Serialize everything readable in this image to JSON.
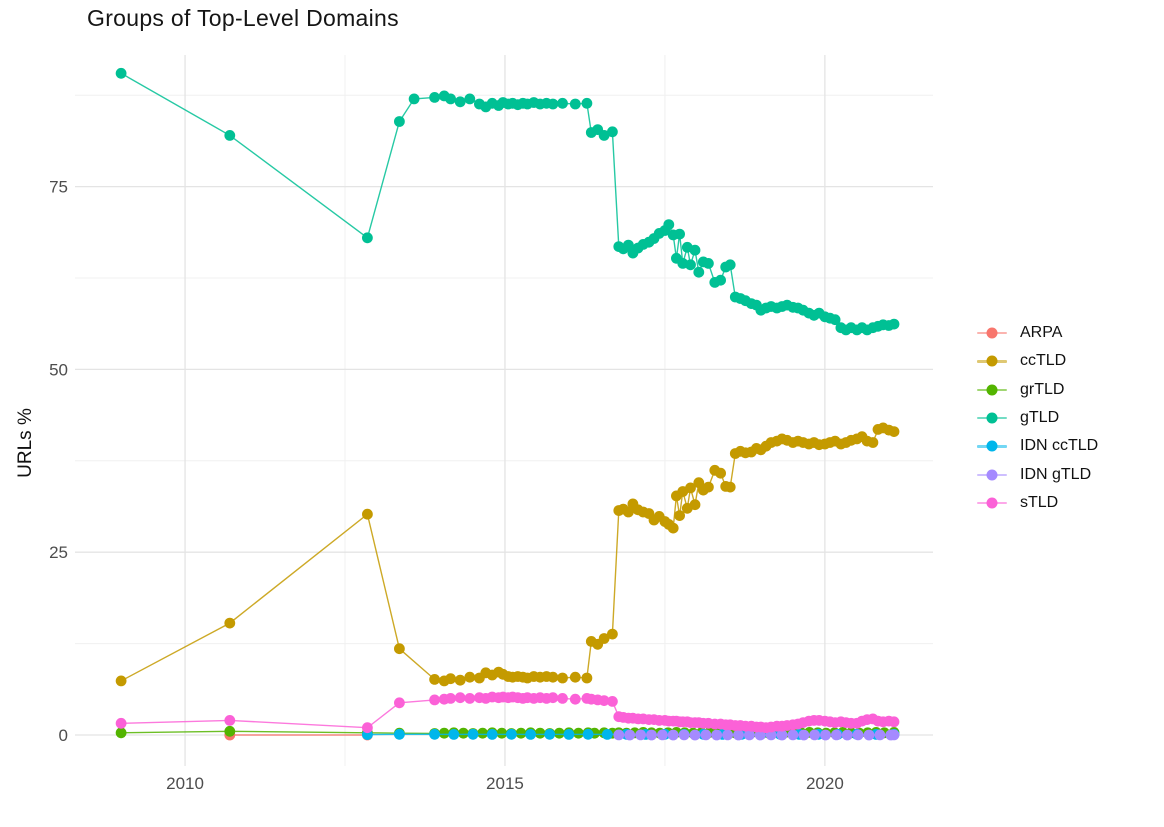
{
  "title": "Groups of Top-Level Domains",
  "y_axis": {
    "title": "URLs %",
    "ticks": [
      "0",
      "25",
      "50",
      "75"
    ]
  },
  "x_axis": {
    "ticks": [
      "2010",
      "2015",
      "2020"
    ]
  },
  "legend": {
    "items": [
      {
        "label": "ARPA",
        "color": "#F8766D"
      },
      {
        "label": "ccTLD",
        "color": "#C49A00"
      },
      {
        "label": "grTLD",
        "color": "#53B400"
      },
      {
        "label": "gTLD",
        "color": "#00C094"
      },
      {
        "label": "IDN ccTLD",
        "color": "#00B6EB"
      },
      {
        "label": "IDN gTLD",
        "color": "#A58AFF"
      },
      {
        "label": "sTLD",
        "color": "#FB61D7"
      }
    ]
  },
  "colors": {
    "tick_label": "#4d4d4d",
    "grid_major": "#e4e4e4",
    "grid_minor": "#f0f0f0"
  },
  "chart_data": {
    "type": "line",
    "title": "Groups of Top-Level Domains",
    "xlabel": "",
    "ylabel": "URLs %",
    "xlim": [
      2008.28,
      2021.69
    ],
    "ylim": [
      -4.24,
      93.0
    ],
    "x_ticks": [
      2010,
      2015,
      2020
    ],
    "y_ticks": [
      0,
      25,
      50,
      75
    ],
    "grid": {
      "major_x": [
        2010,
        2015,
        2020
      ],
      "minor_x": [
        2012.5,
        2017.5
      ],
      "major_y": [
        0,
        25,
        50,
        75
      ],
      "minor_y": [
        12.5,
        37.5,
        62.5,
        87.5
      ]
    },
    "legend_position": "right",
    "series": [
      {
        "name": "ARPA",
        "color": "#F8766D",
        "x": [
          2010.7,
          2012.85
        ],
        "y": [
          0,
          0
        ]
      },
      {
        "name": "ccTLD",
        "color": "#C49A00",
        "x": [
          2009,
          2010.7,
          2012.85,
          2013.35,
          2013.9,
          2014.05,
          2014.15,
          2014.3,
          2014.45,
          2014.6,
          2014.7,
          2014.8,
          2014.9,
          2014.97,
          2015.05,
          2015.12,
          2015.2,
          2015.28,
          2015.35,
          2015.45,
          2015.55,
          2015.65,
          2015.75,
          2015.9,
          2016.1,
          2016.28,
          2016.35,
          2016.45,
          2016.55,
          2016.68,
          2016.78,
          2016.85,
          2016.93,
          2017.0,
          2017.08,
          2017.16,
          2017.25,
          2017.33,
          2017.41,
          2017.5,
          2017.56,
          2017.63,
          2017.68,
          2017.73,
          2017.78,
          2017.85,
          2017.9,
          2017.97,
          2018.03,
          2018.1,
          2018.18,
          2018.28,
          2018.37,
          2018.45,
          2018.52,
          2018.6,
          2018.68,
          2018.76,
          2018.85,
          2018.93,
          2019.0,
          2019.08,
          2019.16,
          2019.25,
          2019.33,
          2019.41,
          2019.5,
          2019.58,
          2019.66,
          2019.75,
          2019.83,
          2019.91,
          2020.0,
          2020.08,
          2020.16,
          2020.25,
          2020.33,
          2020.41,
          2020.5,
          2020.58,
          2020.66,
          2020.75,
          2020.83,
          2020.91,
          2021.0,
          2021.08
        ],
        "y": [
          7.4,
          15.3,
          30.2,
          11.8,
          7.6,
          7.4,
          7.7,
          7.5,
          7.9,
          7.8,
          8.5,
          8.2,
          8.6,
          8.3,
          8,
          7.9,
          8,
          7.9,
          7.8,
          8,
          7.9,
          8,
          7.9,
          7.8,
          7.9,
          7.8,
          12.8,
          12.4,
          13.2,
          13.8,
          30.7,
          30.9,
          30.5,
          31.6,
          30.8,
          30.5,
          30.3,
          29.4,
          29.9,
          29.2,
          28.8,
          28.3,
          32.7,
          30,
          33.3,
          31,
          33.8,
          31.5,
          34.5,
          33.5,
          33.9,
          36.2,
          35.8,
          34,
          33.9,
          38.5,
          38.8,
          38.6,
          38.7,
          39.2,
          39,
          39.5,
          40,
          40.2,
          40.5,
          40.3,
          40,
          40.2,
          40,
          39.8,
          40,
          39.7,
          39.8,
          40,
          40.2,
          39.8,
          40,
          40.3,
          40.5,
          40.8,
          40.2,
          40,
          41.8,
          42,
          41.7,
          41.5
        ]
      },
      {
        "name": "grTLD",
        "color": "#53B400",
        "x": [
          2009,
          2010.7,
          2012.85,
          2013.35,
          2013.9,
          2014.05,
          2014.2,
          2014.35,
          2014.5,
          2014.65,
          2014.8,
          2014.95,
          2015.1,
          2015.25,
          2015.4,
          2015.55,
          2015.7,
          2015.85,
          2016.0,
          2016.15,
          2016.3,
          2016.4,
          2016.55,
          2016.68,
          2016.78,
          2016.9,
          2017.03,
          2017.16,
          2017.29,
          2017.42,
          2017.55,
          2017.68,
          2017.81,
          2017.94,
          2018.07,
          2018.2,
          2018.33,
          2018.46,
          2018.59,
          2018.72,
          2018.85,
          2018.98,
          2019.11,
          2019.24,
          2019.37,
          2019.5,
          2019.63,
          2019.76,
          2019.89,
          2020.02,
          2020.15,
          2020.28,
          2020.41,
          2020.54,
          2020.67,
          2020.8,
          2020.93,
          2021.08
        ],
        "y": [
          0.3,
          0.5,
          0.3,
          0.25,
          0.2,
          0.25,
          0.3,
          0.25,
          0.2,
          0.25,
          0.3,
          0.25,
          0.2,
          0.25,
          0.3,
          0.25,
          0.2,
          0.25,
          0.3,
          0.25,
          0.3,
          0.25,
          0.3,
          0.25,
          0.3,
          0.25,
          0.3,
          0.35,
          0.3,
          0.25,
          0.3,
          0.35,
          0.3,
          0.25,
          0.3,
          0.35,
          0.3,
          0.25,
          0.3,
          0.35,
          0.3,
          0.25,
          0.3,
          0.35,
          0.3,
          0.25,
          0.3,
          0.35,
          0.3,
          0.25,
          0.3,
          0.35,
          0.3,
          0.25,
          0.3,
          0.35,
          0.3,
          0.35
        ]
      },
      {
        "name": "gTLD",
        "color": "#00C094",
        "x": [
          2009,
          2010.7,
          2012.85,
          2013.35,
          2013.58,
          2013.9,
          2014.05,
          2014.15,
          2014.3,
          2014.45,
          2014.6,
          2014.7,
          2014.8,
          2014.9,
          2014.97,
          2015.05,
          2015.12,
          2015.2,
          2015.28,
          2015.35,
          2015.45,
          2015.55,
          2015.65,
          2015.75,
          2015.9,
          2016.1,
          2016.28,
          2016.35,
          2016.45,
          2016.55,
          2016.68,
          2016.78,
          2016.85,
          2016.93,
          2017.0,
          2017.08,
          2017.16,
          2017.25,
          2017.33,
          2017.41,
          2017.5,
          2017.56,
          2017.63,
          2017.68,
          2017.73,
          2017.78,
          2017.85,
          2017.9,
          2017.97,
          2018.03,
          2018.1,
          2018.18,
          2018.28,
          2018.37,
          2018.45,
          2018.52,
          2018.6,
          2018.68,
          2018.76,
          2018.85,
          2018.93,
          2019.0,
          2019.08,
          2019.16,
          2019.25,
          2019.33,
          2019.41,
          2019.5,
          2019.58,
          2019.66,
          2019.75,
          2019.83,
          2019.91,
          2020.0,
          2020.08,
          2020.16,
          2020.25,
          2020.33,
          2020.41,
          2020.5,
          2020.58,
          2020.66,
          2020.75,
          2020.83,
          2020.91,
          2021.0,
          2021.08
        ],
        "y": [
          90.5,
          82,
          68,
          83.9,
          87,
          87.2,
          87.4,
          87,
          86.6,
          87,
          86.3,
          85.9,
          86.4,
          86.1,
          86.5,
          86.3,
          86.4,
          86.2,
          86.4,
          86.3,
          86.5,
          86.3,
          86.4,
          86.3,
          86.4,
          86.3,
          86.4,
          82.4,
          82.8,
          82,
          82.5,
          66.8,
          66.5,
          67,
          65.9,
          66.6,
          67.1,
          67.4,
          67.9,
          68.6,
          69,
          69.8,
          68.4,
          65.2,
          68.5,
          64.5,
          66.7,
          64.3,
          66.3,
          63.3,
          64.7,
          64.5,
          61.9,
          62.2,
          64,
          64.3,
          59.9,
          59.7,
          59.4,
          59,
          58.8,
          58.1,
          58.4,
          58.6,
          58.4,
          58.6,
          58.8,
          58.5,
          58.4,
          58.1,
          57.7,
          57.4,
          57.7,
          57.2,
          57,
          56.8,
          55.7,
          55.4,
          55.7,
          55.4,
          55.7,
          55.4,
          55.7,
          55.9,
          56.1,
          56,
          56.2
        ]
      },
      {
        "name": "IDN ccTLD",
        "color": "#00B6EB",
        "x": [
          2012.85,
          2013.35,
          2013.9,
          2014.2,
          2014.5,
          2014.8,
          2015.1,
          2015.4,
          2015.7,
          2016,
          2016.3,
          2016.6,
          2016.9,
          2017.2,
          2017.5,
          2017.8,
          2018.1,
          2018.4,
          2018.7,
          2019,
          2019.3,
          2019.6,
          2019.9,
          2020.2,
          2020.5,
          2020.8,
          2021.08
        ],
        "y": [
          0.05,
          0.1,
          0.1,
          0.08,
          0.1,
          0.08,
          0.1,
          0.08,
          0.1,
          0.08,
          0.1,
          0.08,
          0.1,
          0.08,
          0.1,
          0.08,
          0.1,
          0.08,
          0.1,
          0.08,
          0.1,
          0.08,
          0.1,
          0.08,
          0.1,
          0.08,
          0.1
        ]
      },
      {
        "name": "IDN gTLD",
        "color": "#A58AFF",
        "x": [
          2016.78,
          2016.95,
          2017.12,
          2017.29,
          2017.46,
          2017.63,
          2017.8,
          2017.97,
          2018.14,
          2018.31,
          2018.48,
          2018.65,
          2018.82,
          2018.99,
          2019.16,
          2019.33,
          2019.5,
          2019.67,
          2019.84,
          2020.01,
          2020.18,
          2020.35,
          2020.52,
          2020.69,
          2020.86,
          2021.03,
          2021.08
        ],
        "y": [
          0.02,
          0,
          0.02,
          0,
          0.02,
          0,
          0.02,
          0,
          0.02,
          0,
          0.02,
          0,
          0.02,
          0,
          0.02,
          0,
          0.02,
          0,
          0.02,
          0,
          0.02,
          0,
          0.02,
          0,
          0.02,
          0,
          0.02
        ]
      },
      {
        "name": "sTLD",
        "color": "#FB61D7",
        "x": [
          2009,
          2010.7,
          2012.85,
          2013.35,
          2013.9,
          2014.05,
          2014.15,
          2014.3,
          2014.45,
          2014.6,
          2014.7,
          2014.8,
          2014.9,
          2014.97,
          2015.05,
          2015.12,
          2015.2,
          2015.28,
          2015.35,
          2015.45,
          2015.55,
          2015.65,
          2015.75,
          2015.9,
          2016.1,
          2016.28,
          2016.35,
          2016.45,
          2016.55,
          2016.68,
          2016.78,
          2016.85,
          2016.93,
          2017.0,
          2017.08,
          2017.16,
          2017.25,
          2017.33,
          2017.41,
          2017.5,
          2017.56,
          2017.63,
          2017.68,
          2017.73,
          2017.78,
          2017.85,
          2017.9,
          2017.97,
          2018.03,
          2018.1,
          2018.18,
          2018.28,
          2018.37,
          2018.45,
          2018.52,
          2018.6,
          2018.68,
          2018.76,
          2018.85,
          2018.93,
          2019.0,
          2019.08,
          2019.16,
          2019.25,
          2019.33,
          2019.41,
          2019.5,
          2019.58,
          2019.66,
          2019.75,
          2019.83,
          2019.91,
          2020.0,
          2020.08,
          2020.16,
          2020.25,
          2020.33,
          2020.41,
          2020.5,
          2020.58,
          2020.66,
          2020.75,
          2020.83,
          2020.91,
          2021.0,
          2021.08
        ],
        "y": [
          1.6,
          2,
          1,
          4.4,
          4.8,
          4.9,
          5,
          5.1,
          5,
          5.1,
          5,
          5.2,
          5.1,
          5.2,
          5.1,
          5.2,
          5.1,
          5,
          5.1,
          5,
          5.1,
          5,
          5.1,
          5,
          4.9,
          5,
          4.9,
          4.8,
          4.7,
          4.6,
          2.5,
          2.4,
          2.3,
          2.3,
          2.2,
          2.2,
          2.1,
          2.1,
          2,
          2,
          1.9,
          1.9,
          1.9,
          1.8,
          1.8,
          1.8,
          1.7,
          1.7,
          1.7,
          1.6,
          1.6,
          1.5,
          1.5,
          1.4,
          1.4,
          1.3,
          1.3,
          1.2,
          1.2,
          1.1,
          1.1,
          1,
          1.1,
          1.2,
          1.2,
          1.3,
          1.4,
          1.5,
          1.7,
          1.9,
          2,
          2,
          1.9,
          1.8,
          1.7,
          1.8,
          1.7,
          1.6,
          1.6,
          1.9,
          2.1,
          2.2,
          1.9,
          1.8,
          1.9,
          1.8
        ]
      }
    ]
  }
}
